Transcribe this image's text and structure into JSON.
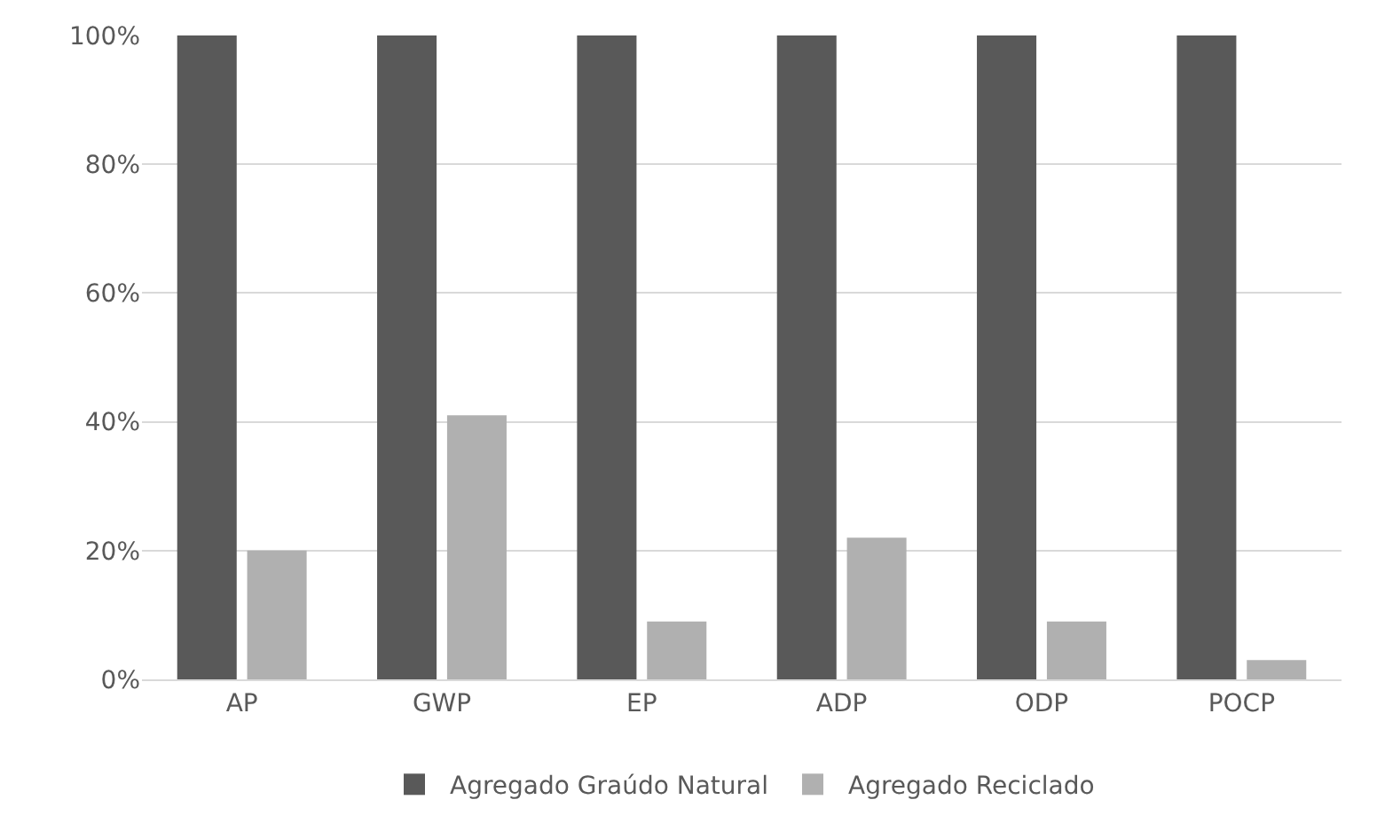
{
  "chart_data": {
    "type": "bar",
    "categories": [
      "AP",
      "GWP",
      "EP",
      "ADP",
      "ODP",
      "POCP"
    ],
    "series": [
      {
        "name": "Agregado Graúdo Natural",
        "color": "#595959",
        "values": [
          100,
          100,
          100,
          100,
          100,
          100
        ]
      },
      {
        "name": "Agregado Reciclado",
        "color": "#b0b0b0",
        "values": [
          20,
          41,
          9,
          22,
          9,
          3
        ]
      }
    ],
    "ylim": [
      0,
      100
    ],
    "yticks": [
      {
        "value": 0,
        "label": "0%"
      },
      {
        "value": 20,
        "label": "20%"
      },
      {
        "value": 40,
        "label": "40%"
      },
      {
        "value": 60,
        "label": "60%"
      },
      {
        "value": 80,
        "label": "80%"
      },
      {
        "value": 100,
        "label": "100%"
      }
    ],
    "grid": "y",
    "legend": "bottom"
  }
}
